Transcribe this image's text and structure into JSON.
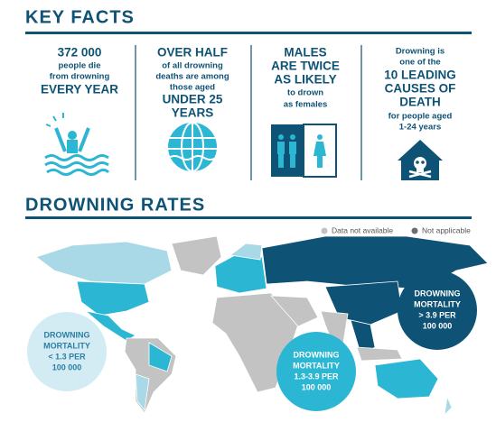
{
  "key_facts": {
    "title": "KEY FACTS",
    "facts": [
      [
        "372 000",
        "people die",
        "from drowning",
        "EVERY YEAR"
      ],
      [
        "OVER HALF",
        "of all drowning",
        "deaths are among",
        "those aged",
        "UNDER 25",
        "YEARS"
      ],
      [
        "MALES",
        "ARE TWICE",
        "AS LIKELY",
        "to drown",
        "as females"
      ],
      [
        "Drowning is",
        "one of the",
        "10 LEADING",
        "CAUSES OF",
        "DEATH",
        "for people aged",
        "1-24 years"
      ]
    ]
  },
  "drowning_rates": {
    "title": "DROWNING RATES",
    "legend": [
      "Data not available",
      "Not applicable"
    ],
    "labels": [
      [
        "DROWNING",
        "MORTALITY",
        "> 3.9 PER",
        "100 000"
      ],
      [
        "DROWNING",
        "MORTALITY",
        "< 1.3 PER",
        "100 000"
      ],
      [
        "DROWNING",
        "MORTALITY",
        "1.3-3.9 PER",
        "100 000"
      ]
    ]
  }
}
